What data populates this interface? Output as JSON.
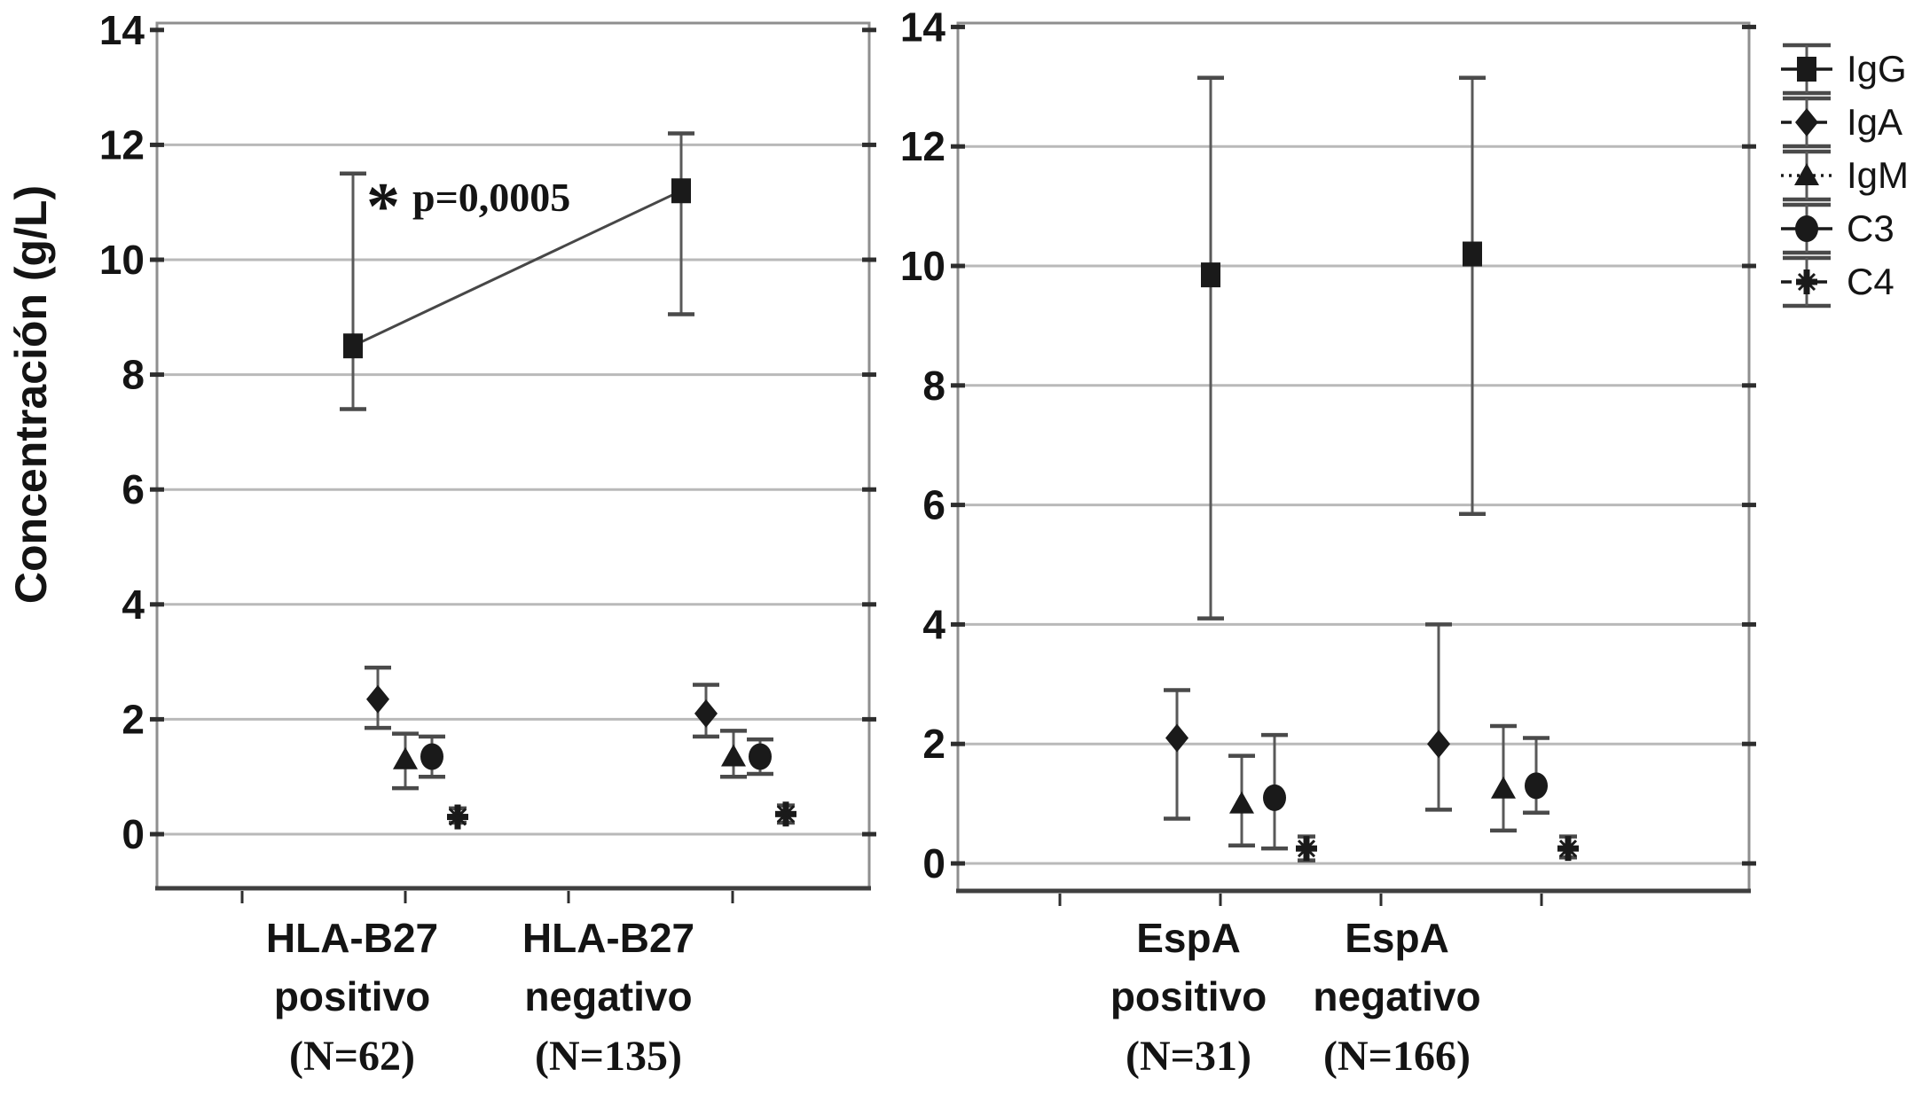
{
  "figure": {
    "ylabel": "Concentración (g/L)",
    "background": "#ffffff",
    "yticks": [
      14,
      12,
      10,
      8,
      6,
      4,
      2,
      0
    ],
    "colors": {
      "marker": "#1a1a1a",
      "error_bar": "#595959",
      "error_cap": "#4a4a4a",
      "gridline": "#b9b9b9",
      "panel_border": "#8f8f8f",
      "x_axis": "#3f3f3f",
      "tick": "#2e2e2e",
      "text": "#141414",
      "significance_line": "#474747"
    }
  },
  "annotation": {
    "star": "*",
    "label": "p=0,0005",
    "connects": [
      "HLA-B27 positivo IgG",
      "HLA-B27 negativo IgG"
    ]
  },
  "legend": {
    "position": "top-right",
    "entries": [
      {
        "label": "IgG",
        "marker": "square",
        "line_style": "solid"
      },
      {
        "label": "IgA",
        "marker": "diamond",
        "line_style": "dashed"
      },
      {
        "label": "IgM",
        "marker": "triangle",
        "line_style": "dotted"
      },
      {
        "label": "C3",
        "marker": "circle",
        "line_style": "solid"
      },
      {
        "label": "C4",
        "marker": "asterisk",
        "line_style": "dashed"
      }
    ]
  },
  "chart_data": [
    {
      "type": "scatter",
      "panel": "HLA-B27",
      "ylabel": "Concentración (g/L)",
      "ylim": [
        -0.95,
        14.1
      ],
      "grid": true,
      "categories": [
        {
          "line1": "HLA-B27",
          "line2": "positivo",
          "line3": "(N=62)"
        },
        {
          "line1": "HLA-B27",
          "line2": "negativo",
          "line3": "(N=135)"
        }
      ],
      "series": [
        {
          "name": "IgG",
          "marker": "square",
          "points": [
            {
              "category": "HLA-B27 positivo",
              "y": 8.5,
              "ci_low": 7.4,
              "ci_high": 11.5
            },
            {
              "category": "HLA-B27 negativo",
              "y": 11.2,
              "ci_low": 9.05,
              "ci_high": 12.2
            }
          ]
        },
        {
          "name": "IgA",
          "marker": "diamond",
          "points": [
            {
              "category": "HLA-B27 positivo",
              "y": 2.35,
              "ci_low": 1.85,
              "ci_high": 2.9
            },
            {
              "category": "HLA-B27 negativo",
              "y": 2.1,
              "ci_low": 1.7,
              "ci_high": 2.6
            }
          ]
        },
        {
          "name": "IgM",
          "marker": "triangle",
          "points": [
            {
              "category": "HLA-B27 positivo",
              "y": 1.3,
              "ci_low": 0.8,
              "ci_high": 1.75
            },
            {
              "category": "HLA-B27 negativo",
              "y": 1.35,
              "ci_low": 1.0,
              "ci_high": 1.8
            }
          ]
        },
        {
          "name": "C3",
          "marker": "circle",
          "points": [
            {
              "category": "HLA-B27 positivo",
              "y": 1.35,
              "ci_low": 1.0,
              "ci_high": 1.7
            },
            {
              "category": "HLA-B27 negativo",
              "y": 1.35,
              "ci_low": 1.05,
              "ci_high": 1.65
            }
          ]
        },
        {
          "name": "C4",
          "marker": "asterisk",
          "points": [
            {
              "category": "HLA-B27 positivo",
              "y": 0.3,
              "ci_low": 0.2,
              "ci_high": 0.45
            },
            {
              "category": "HLA-B27 negativo",
              "y": 0.35,
              "ci_low": 0.2,
              "ci_high": 0.5
            }
          ]
        }
      ],
      "annotation": "* p=0,0005 (IgG positivo vs negativo)"
    },
    {
      "type": "scatter",
      "panel": "EspA",
      "ylabel": "Concentración (g/L)",
      "ylim": [
        -0.5,
        14.1
      ],
      "grid": true,
      "categories": [
        {
          "line1": "EspA",
          "line2": "positivo",
          "line3": "(N=31)"
        },
        {
          "line1": "EspA",
          "line2": "negativo",
          "line3": "(N=166)"
        }
      ],
      "series": [
        {
          "name": "IgG",
          "marker": "square",
          "points": [
            {
              "category": "EspA positivo",
              "y": 9.85,
              "ci_low": 4.1,
              "ci_high": 13.15
            },
            {
              "category": "EspA negativo",
              "y": 10.2,
              "ci_low": 5.85,
              "ci_high": 13.15
            }
          ]
        },
        {
          "name": "IgA",
          "marker": "diamond",
          "points": [
            {
              "category": "EspA positivo",
              "y": 2.1,
              "ci_low": 0.75,
              "ci_high": 2.9
            },
            {
              "category": "EspA negativo",
              "y": 2.0,
              "ci_low": 0.9,
              "ci_high": 4.0
            }
          ]
        },
        {
          "name": "IgM",
          "marker": "triangle",
          "points": [
            {
              "category": "EspA positivo",
              "y": 1.0,
              "ci_low": 0.3,
              "ci_high": 1.8
            },
            {
              "category": "EspA negativo",
              "y": 1.25,
              "ci_low": 0.55,
              "ci_high": 2.3
            }
          ]
        },
        {
          "name": "C3",
          "marker": "circle",
          "points": [
            {
              "category": "EspA positivo",
              "y": 1.1,
              "ci_low": 0.25,
              "ci_high": 2.15
            },
            {
              "category": "EspA negativo",
              "y": 1.3,
              "ci_low": 0.85,
              "ci_high": 2.1
            }
          ]
        },
        {
          "name": "C4",
          "marker": "asterisk",
          "points": [
            {
              "category": "EspA positivo",
              "y": 0.25,
              "ci_low": 0.05,
              "ci_high": 0.45
            },
            {
              "category": "EspA negativo",
              "y": 0.25,
              "ci_low": 0.1,
              "ci_high": 0.45
            }
          ]
        }
      ]
    }
  ]
}
